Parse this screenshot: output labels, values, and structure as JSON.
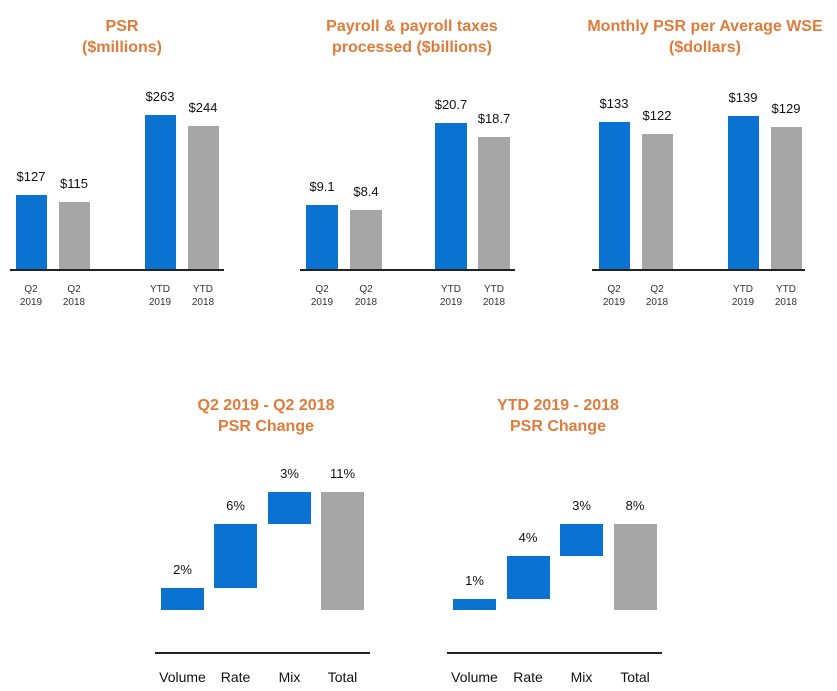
{
  "chart_data": [
    {
      "type": "bar",
      "title": "PSR\n($millions)",
      "categories": [
        "Q2\n2019",
        "Q2\n2018",
        "YTD\n2019",
        "YTD\n2018"
      ],
      "values": [
        127,
        115,
        263,
        244
      ],
      "value_labels": [
        "$127",
        "$115",
        "$263",
        "$244"
      ],
      "colors": [
        "#0a72d1",
        "#a6a6a6",
        "#0a72d1",
        "#a6a6a6"
      ],
      "ylim": [
        0,
        305
      ]
    },
    {
      "type": "bar",
      "title": "Payroll & payroll taxes\nprocessed ($billions)",
      "categories": [
        "Q2\n2019",
        "Q2\n2018",
        "YTD\n2019",
        "YTD\n2018"
      ],
      "values": [
        9.1,
        8.4,
        20.7,
        18.7
      ],
      "value_labels": [
        "$9.1",
        "$8.4",
        "$20.7",
        "$18.7"
      ],
      "colors": [
        "#0a72d1",
        "#a6a6a6",
        "#0a72d1",
        "#a6a6a6"
      ],
      "ylim": [
        0,
        25.3
      ]
    },
    {
      "type": "bar",
      "title": "Monthly PSR per Average WSE\n($dollars)",
      "categories": [
        "Q2\n2019",
        "Q2\n2018",
        "YTD\n2019",
        "YTD\n2018"
      ],
      "values": [
        133,
        122,
        139,
        129
      ],
      "value_labels": [
        "$133",
        "$122",
        "$139",
        "$129"
      ],
      "colors": [
        "#0a72d1",
        "#a6a6a6",
        "#0a72d1",
        "#a6a6a6"
      ],
      "ylim": [
        0,
        162
      ]
    },
    {
      "type": "waterfall",
      "title": "Q2 2019 - Q2 2018\nPSR Change",
      "categories": [
        "Volume",
        "Rate",
        "Mix",
        "Total"
      ],
      "values": [
        2,
        6,
        3,
        11
      ],
      "value_labels": [
        "2%",
        "6%",
        "3%",
        "11%"
      ],
      "is_total": [
        false,
        false,
        false,
        true
      ],
      "colors": [
        "#0a72d1",
        "#0a72d1",
        "#0a72d1",
        "#a6a6a6"
      ],
      "ylim": [
        0,
        13
      ]
    },
    {
      "type": "waterfall",
      "title": "YTD 2019 -  2018\nPSR Change",
      "categories": [
        "Volume",
        "Rate",
        "Mix",
        "Total"
      ],
      "values": [
        1,
        4,
        3,
        8
      ],
      "value_labels": [
        "1%",
        "4%",
        "3%",
        "8%"
      ],
      "is_total": [
        false,
        false,
        false,
        true
      ],
      "colors": [
        "#0a72d1",
        "#0a72d1",
        "#0a72d1",
        "#a6a6a6"
      ],
      "ylim": [
        0,
        13
      ]
    }
  ]
}
